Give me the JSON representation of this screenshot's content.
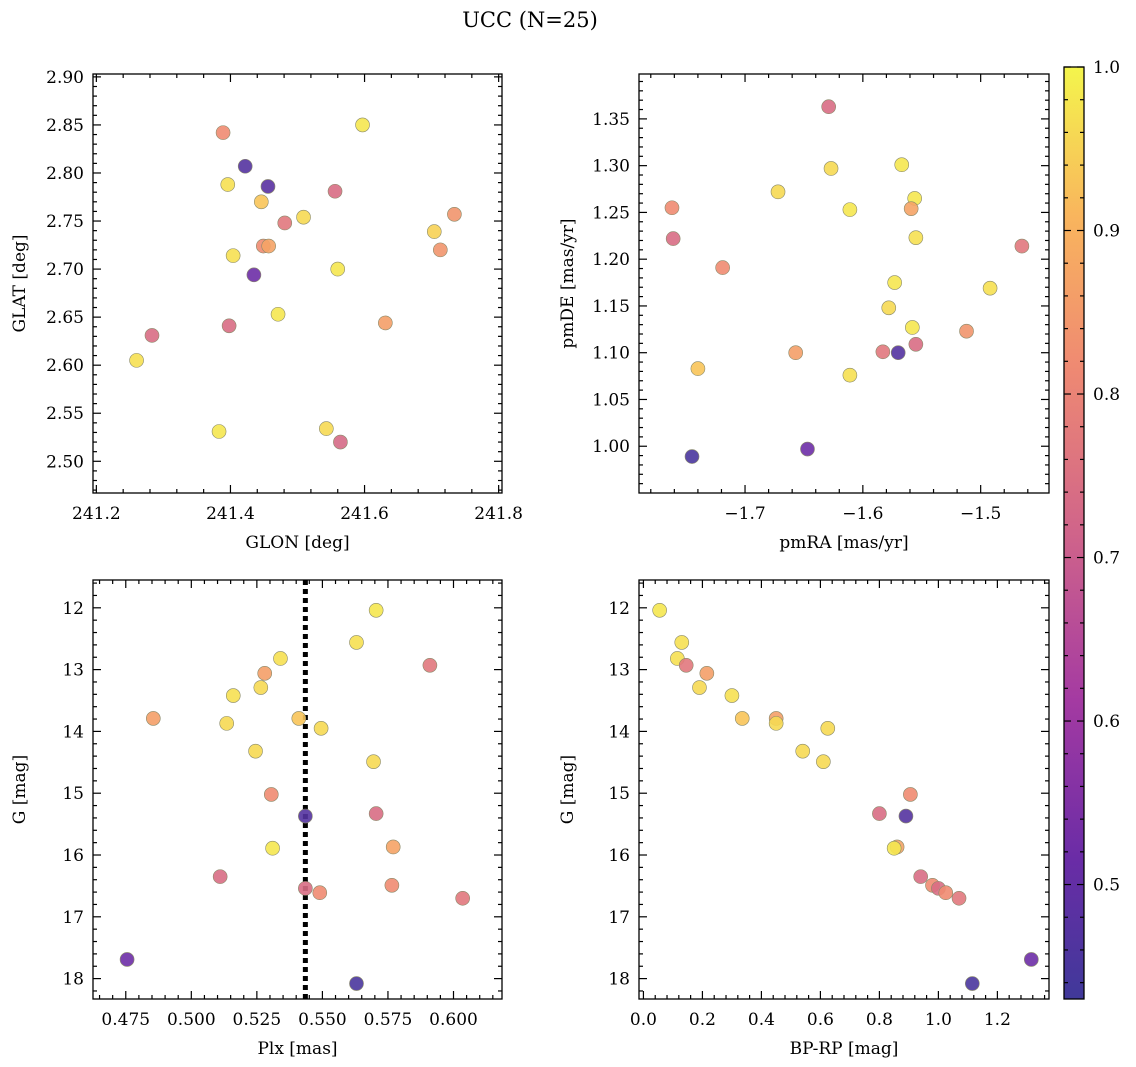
{
  "title": "UCC (N=25)",
  "colorbar": {
    "range": [
      0.43,
      1.0
    ],
    "ticks": [
      {
        "v": 0.5,
        "label": "0.5"
      },
      {
        "v": 0.6,
        "label": "0.6"
      },
      {
        "v": 0.7,
        "label": "0.7"
      },
      {
        "v": 0.8,
        "label": "0.8"
      },
      {
        "v": 0.9,
        "label": "0.9"
      },
      {
        "v": 1.0,
        "label": "1.0"
      }
    ]
  },
  "chart_data": [
    {
      "type": "scatter",
      "xlabel": "GLON [deg]",
      "ylabel": "GLAT [deg]",
      "xlim": [
        241.195,
        241.805
      ],
      "ylim": [
        2.467,
        2.903
      ],
      "y_inverted": false,
      "xticks": [
        {
          "v": 241.2,
          "label": "241.2"
        },
        {
          "v": 241.4,
          "label": "241.4"
        },
        {
          "v": 241.6,
          "label": "241.6"
        },
        {
          "v": 241.8,
          "label": "241.8"
        }
      ],
      "yticks": [
        {
          "v": 2.5,
          "label": "2.50"
        },
        {
          "v": 2.55,
          "label": "2.55"
        },
        {
          "v": 2.6,
          "label": "2.60"
        },
        {
          "v": 2.65,
          "label": "2.65"
        },
        {
          "v": 2.7,
          "label": "2.70"
        },
        {
          "v": 2.75,
          "label": "2.75"
        },
        {
          "v": 2.8,
          "label": "2.80"
        },
        {
          "v": 2.85,
          "label": "2.85"
        },
        {
          "v": 2.9,
          "label": "2.90"
        }
      ],
      "points": [
        {
          "x": 241.389,
          "y": 2.842,
          "c": 0.82
        },
        {
          "x": 241.597,
          "y": 2.85,
          "c": 0.98
        },
        {
          "x": 241.422,
          "y": 2.807,
          "c": 0.47
        },
        {
          "x": 241.396,
          "y": 2.788,
          "c": 0.97
        },
        {
          "x": 241.456,
          "y": 2.786,
          "c": 0.48
        },
        {
          "x": 241.556,
          "y": 2.781,
          "c": 0.74
        },
        {
          "x": 241.446,
          "y": 2.77,
          "c": 0.93
        },
        {
          "x": 241.734,
          "y": 2.757,
          "c": 0.84
        },
        {
          "x": 241.509,
          "y": 2.754,
          "c": 0.96
        },
        {
          "x": 241.481,
          "y": 2.748,
          "c": 0.77
        },
        {
          "x": 241.704,
          "y": 2.739,
          "c": 0.95
        },
        {
          "x": 241.449,
          "y": 2.724,
          "c": 0.82
        },
        {
          "x": 241.457,
          "y": 2.724,
          "c": 0.87
        },
        {
          "x": 241.713,
          "y": 2.72,
          "c": 0.84
        },
        {
          "x": 241.404,
          "y": 2.714,
          "c": 0.97
        },
        {
          "x": 241.56,
          "y": 2.7,
          "c": 0.98
        },
        {
          "x": 241.435,
          "y": 2.694,
          "c": 0.52
        },
        {
          "x": 241.471,
          "y": 2.653,
          "c": 0.98
        },
        {
          "x": 241.631,
          "y": 2.644,
          "c": 0.86
        },
        {
          "x": 241.398,
          "y": 2.641,
          "c": 0.74
        },
        {
          "x": 241.283,
          "y": 2.631,
          "c": 0.74
        },
        {
          "x": 241.26,
          "y": 2.605,
          "c": 0.97
        },
        {
          "x": 241.543,
          "y": 2.534,
          "c": 0.96
        },
        {
          "x": 241.383,
          "y": 2.531,
          "c": 0.98
        },
        {
          "x": 241.564,
          "y": 2.52,
          "c": 0.73
        }
      ]
    },
    {
      "type": "scatter",
      "xlabel": "pmRA [mas/yr]",
      "ylabel": "pmDE [mas/yr]",
      "xlim": [
        -1.79,
        -1.442
      ],
      "ylim": [
        0.95,
        1.398
      ],
      "y_inverted": false,
      "xticks": [
        {
          "v": -1.7,
          "label": "−1.7"
        },
        {
          "v": -1.6,
          "label": "−1.6"
        },
        {
          "v": -1.5,
          "label": "−1.5"
        }
      ],
      "yticks": [
        {
          "v": 1.0,
          "label": "1.00"
        },
        {
          "v": 1.05,
          "label": "1.05"
        },
        {
          "v": 1.1,
          "label": "1.10"
        },
        {
          "v": 1.15,
          "label": "1.15"
        },
        {
          "v": 1.2,
          "label": "1.20"
        },
        {
          "v": 1.25,
          "label": "1.25"
        },
        {
          "v": 1.3,
          "label": "1.30"
        },
        {
          "v": 1.35,
          "label": "1.35"
        }
      ],
      "points": [
        {
          "x": -1.629,
          "y": 1.363,
          "c": 0.74
        },
        {
          "x": -1.567,
          "y": 1.301,
          "c": 0.98
        },
        {
          "x": -1.627,
          "y": 1.297,
          "c": 0.96
        },
        {
          "x": -1.672,
          "y": 1.272,
          "c": 0.96
        },
        {
          "x": -1.556,
          "y": 1.265,
          "c": 0.98
        },
        {
          "x": -1.762,
          "y": 1.255,
          "c": 0.82
        },
        {
          "x": -1.559,
          "y": 1.254,
          "c": 0.87
        },
        {
          "x": -1.611,
          "y": 1.253,
          "c": 0.98
        },
        {
          "x": -1.555,
          "y": 1.223,
          "c": 0.97
        },
        {
          "x": -1.761,
          "y": 1.222,
          "c": 0.74
        },
        {
          "x": -1.465,
          "y": 1.214,
          "c": 0.77
        },
        {
          "x": -1.719,
          "y": 1.191,
          "c": 0.82
        },
        {
          "x": -1.573,
          "y": 1.175,
          "c": 0.98
        },
        {
          "x": -1.492,
          "y": 1.169,
          "c": 0.97
        },
        {
          "x": -1.578,
          "y": 1.148,
          "c": 0.96
        },
        {
          "x": -1.558,
          "y": 1.127,
          "c": 0.98
        },
        {
          "x": -1.512,
          "y": 1.123,
          "c": 0.84
        },
        {
          "x": -1.555,
          "y": 1.109,
          "c": 0.74
        },
        {
          "x": -1.583,
          "y": 1.101,
          "c": 0.77
        },
        {
          "x": -1.57,
          "y": 1.1,
          "c": 0.47
        },
        {
          "x": -1.657,
          "y": 1.1,
          "c": 0.86
        },
        {
          "x": -1.74,
          "y": 1.083,
          "c": 0.93
        },
        {
          "x": -1.611,
          "y": 1.076,
          "c": 0.97
        },
        {
          "x": -1.647,
          "y": 0.997,
          "c": 0.52
        },
        {
          "x": -1.745,
          "y": 0.989,
          "c": 0.45
        }
      ]
    },
    {
      "type": "scatter",
      "xlabel": "Plx [mas]",
      "ylabel": "G [mag]",
      "xlim": [
        0.4625,
        0.6185
      ],
      "ylim": [
        11.55,
        18.33
      ],
      "y_inverted": true,
      "vline": 0.5435,
      "xticks": [
        {
          "v": 0.475,
          "label": "0.475"
        },
        {
          "v": 0.5,
          "label": "0.500"
        },
        {
          "v": 0.525,
          "label": "0.525"
        },
        {
          "v": 0.55,
          "label": "0.550"
        },
        {
          "v": 0.575,
          "label": "0.575"
        },
        {
          "v": 0.6,
          "label": "0.600"
        }
      ],
      "yticks": [
        {
          "v": 12,
          "label": "12"
        },
        {
          "v": 13,
          "label": "13"
        },
        {
          "v": 14,
          "label": "14"
        },
        {
          "v": 15,
          "label": "15"
        },
        {
          "v": 16,
          "label": "16"
        },
        {
          "v": 17,
          "label": "17"
        },
        {
          "v": 18,
          "label": "18"
        }
      ],
      "points": [
        {
          "x": 0.5705,
          "y": 12.04,
          "c": 0.98
        },
        {
          "x": 0.563,
          "y": 12.56,
          "c": 0.97
        },
        {
          "x": 0.534,
          "y": 12.82,
          "c": 0.97
        },
        {
          "x": 0.591,
          "y": 12.93,
          "c": 0.77
        },
        {
          "x": 0.528,
          "y": 13.06,
          "c": 0.86
        },
        {
          "x": 0.5265,
          "y": 13.29,
          "c": 0.96
        },
        {
          "x": 0.516,
          "y": 13.42,
          "c": 0.97
        },
        {
          "x": 0.4855,
          "y": 13.79,
          "c": 0.86
        },
        {
          "x": 0.541,
          "y": 13.79,
          "c": 0.93
        },
        {
          "x": 0.5135,
          "y": 13.87,
          "c": 0.96
        },
        {
          "x": 0.5495,
          "y": 13.95,
          "c": 0.96
        },
        {
          "x": 0.5245,
          "y": 14.32,
          "c": 0.96
        },
        {
          "x": 0.5695,
          "y": 14.49,
          "c": 0.96
        },
        {
          "x": 0.5305,
          "y": 15.02,
          "c": 0.82
        },
        {
          "x": 0.5705,
          "y": 15.33,
          "c": 0.74
        },
        {
          "x": 0.5435,
          "y": 15.37,
          "c": 0.47
        },
        {
          "x": 0.577,
          "y": 15.87,
          "c": 0.87
        },
        {
          "x": 0.531,
          "y": 15.89,
          "c": 0.98
        },
        {
          "x": 0.511,
          "y": 16.35,
          "c": 0.74
        },
        {
          "x": 0.5765,
          "y": 16.49,
          "c": 0.82
        },
        {
          "x": 0.5435,
          "y": 16.54,
          "c": 0.74
        },
        {
          "x": 0.549,
          "y": 16.61,
          "c": 0.82
        },
        {
          "x": 0.6035,
          "y": 16.7,
          "c": 0.77
        },
        {
          "x": 0.4755,
          "y": 17.69,
          "c": 0.52
        },
        {
          "x": 0.563,
          "y": 18.08,
          "c": 0.45
        }
      ]
    },
    {
      "type": "scatter",
      "xlabel": "BP-RP [mag]",
      "ylabel": "G [mag]",
      "xlim": [
        -0.015,
        1.375
      ],
      "ylim": [
        11.55,
        18.33
      ],
      "y_inverted": true,
      "xticks": [
        {
          "v": 0.0,
          "label": "0.0"
        },
        {
          "v": 0.2,
          "label": "0.2"
        },
        {
          "v": 0.4,
          "label": "0.4"
        },
        {
          "v": 0.6,
          "label": "0.6"
        },
        {
          "v": 0.8,
          "label": "0.8"
        },
        {
          "v": 1.0,
          "label": "1.0"
        },
        {
          "v": 1.2,
          "label": "1.2"
        }
      ],
      "yticks": [
        {
          "v": 12,
          "label": "12"
        },
        {
          "v": 13,
          "label": "13"
        },
        {
          "v": 14,
          "label": "14"
        },
        {
          "v": 15,
          "label": "15"
        },
        {
          "v": 16,
          "label": "16"
        },
        {
          "v": 17,
          "label": "17"
        },
        {
          "v": 18,
          "label": "18"
        }
      ],
      "points": [
        {
          "x": 0.055,
          "y": 12.04,
          "c": 0.98
        },
        {
          "x": 0.13,
          "y": 12.56,
          "c": 0.97
        },
        {
          "x": 0.115,
          "y": 12.82,
          "c": 0.97
        },
        {
          "x": 0.145,
          "y": 12.93,
          "c": 0.77
        },
        {
          "x": 0.215,
          "y": 13.06,
          "c": 0.86
        },
        {
          "x": 0.19,
          "y": 13.29,
          "c": 0.96
        },
        {
          "x": 0.3,
          "y": 13.42,
          "c": 0.97
        },
        {
          "x": 0.45,
          "y": 13.79,
          "c": 0.86
        },
        {
          "x": 0.335,
          "y": 13.79,
          "c": 0.93
        },
        {
          "x": 0.45,
          "y": 13.87,
          "c": 0.96
        },
        {
          "x": 0.625,
          "y": 13.95,
          "c": 0.96
        },
        {
          "x": 0.54,
          "y": 14.32,
          "c": 0.96
        },
        {
          "x": 0.61,
          "y": 14.49,
          "c": 0.96
        },
        {
          "x": 0.905,
          "y": 15.02,
          "c": 0.82
        },
        {
          "x": 0.8,
          "y": 15.33,
          "c": 0.74
        },
        {
          "x": 0.89,
          "y": 15.37,
          "c": 0.47
        },
        {
          "x": 0.86,
          "y": 15.87,
          "c": 0.87
        },
        {
          "x": 0.85,
          "y": 15.89,
          "c": 0.98
        },
        {
          "x": 0.94,
          "y": 16.35,
          "c": 0.74
        },
        {
          "x": 0.98,
          "y": 16.49,
          "c": 0.82
        },
        {
          "x": 1.0,
          "y": 16.54,
          "c": 0.74
        },
        {
          "x": 1.025,
          "y": 16.61,
          "c": 0.82
        },
        {
          "x": 1.07,
          "y": 16.7,
          "c": 0.77
        },
        {
          "x": 1.315,
          "y": 17.69,
          "c": 0.52
        },
        {
          "x": 1.115,
          "y": 18.08,
          "c": 0.45
        }
      ]
    }
  ]
}
